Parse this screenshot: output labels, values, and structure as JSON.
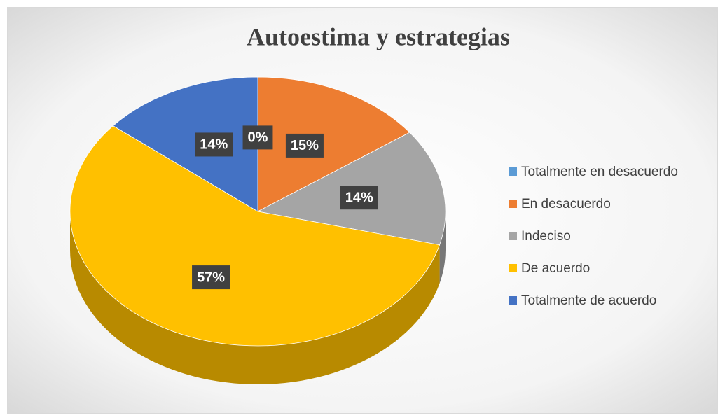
{
  "chart_data": {
    "type": "pie3d",
    "title": "Autoestima y estrategias",
    "categories": [
      "Totalmente en desacuerdo",
      "En desacuerdo",
      "Indeciso",
      "De acuerdo",
      "Totalmente de acuerdo"
    ],
    "values": [
      0,
      15,
      14,
      57,
      14
    ],
    "value_labels": [
      "0%",
      "15%",
      "14%",
      "57%",
      "14%"
    ],
    "colors": [
      "#5b9bd5",
      "#ed7d31",
      "#a5a5a5",
      "#ffc000",
      "#4472c4"
    ],
    "legend": "right"
  }
}
